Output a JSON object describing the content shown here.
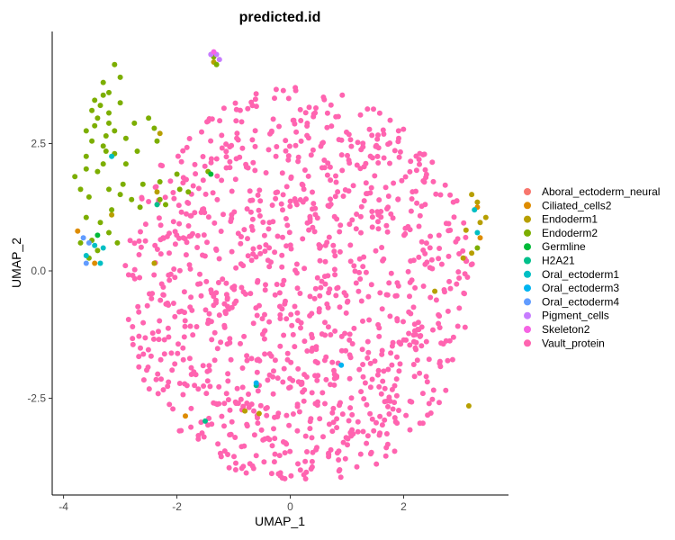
{
  "chart_data": {
    "type": "scatter",
    "title": "predicted.id",
    "xlabel": "UMAP_1",
    "ylabel": "UMAP_2",
    "xlim": [
      -4.2,
      3.85
    ],
    "ylim": [
      -4.4,
      4.7
    ],
    "x_ticks": [
      -4,
      -2,
      0,
      2
    ],
    "y_ticks": [
      -2.5,
      0.0,
      2.5
    ],
    "y_tick_labels": [
      "-2.5",
      "0.0",
      "2.5"
    ],
    "grid": false,
    "legend_position": "right",
    "series": [
      {
        "name": "Aboral_ectoderm_neural",
        "color": "#F8766D",
        "points": []
      },
      {
        "name": "Ciliated_cells2",
        "color": "#DE8C00",
        "points": [
          [
            -3.75,
            0.78
          ],
          [
            -3.45,
            0.15
          ],
          [
            3.3,
            1.25
          ],
          [
            3.35,
            0.65
          ],
          [
            -1.85,
            -2.85
          ]
        ]
      },
      {
        "name": "Endoderm1",
        "color": "#B79F00",
        "points": [
          [
            3.2,
            1.5
          ],
          [
            3.3,
            1.35
          ],
          [
            3.45,
            1.05
          ],
          [
            3.1,
            0.8
          ],
          [
            3.2,
            0.35
          ],
          [
            3.05,
            0.25
          ],
          [
            -3.15,
            1.1
          ],
          [
            -2.35,
            1.55
          ],
          [
            -2.3,
            2.7
          ],
          [
            2.55,
            -0.4
          ],
          [
            -0.55,
            -2.8
          ],
          [
            3.15,
            -2.65
          ],
          [
            -1.35,
            4.1
          ],
          [
            -2.4,
            0.15
          ],
          [
            -0.8,
            -2.75
          ],
          [
            3.35,
            0.95
          ]
        ]
      },
      {
        "name": "Endoderm2",
        "color": "#7CAE00",
        "points": [
          [
            -3.1,
            4.05
          ],
          [
            -3.0,
            3.8
          ],
          [
            -3.3,
            3.7
          ],
          [
            -3.2,
            3.5
          ],
          [
            -3.0,
            3.3
          ],
          [
            -3.35,
            3.25
          ],
          [
            -3.5,
            3.15
          ],
          [
            -3.4,
            3.0
          ],
          [
            -3.2,
            2.9
          ],
          [
            -3.45,
            2.85
          ],
          [
            -3.6,
            2.75
          ],
          [
            -3.25,
            2.65
          ],
          [
            -3.1,
            2.75
          ],
          [
            -3.5,
            2.55
          ],
          [
            -3.3,
            2.45
          ],
          [
            -2.9,
            2.6
          ],
          [
            -2.7,
            2.35
          ],
          [
            -2.5,
            3.0
          ],
          [
            -2.4,
            2.8
          ],
          [
            -2.35,
            2.55
          ],
          [
            -3.6,
            2.25
          ],
          [
            -3.3,
            2.1
          ],
          [
            -3.1,
            2.3
          ],
          [
            -2.9,
            2.1
          ],
          [
            -3.6,
            2.0
          ],
          [
            -3.4,
            1.95
          ],
          [
            -3.8,
            1.85
          ],
          [
            -3.7,
            1.6
          ],
          [
            -3.55,
            1.45
          ],
          [
            -3.2,
            1.6
          ],
          [
            -3.0,
            1.5
          ],
          [
            -2.8,
            1.4
          ],
          [
            -2.95,
            1.7
          ],
          [
            -2.65,
            1.25
          ],
          [
            -2.6,
            1.7
          ],
          [
            -2.3,
            1.75
          ],
          [
            -2.0,
            1.9
          ],
          [
            -1.95,
            1.6
          ],
          [
            -1.8,
            1.55
          ],
          [
            -3.6,
            1.05
          ],
          [
            -3.35,
            0.95
          ],
          [
            -3.2,
            0.75
          ],
          [
            -3.5,
            0.6
          ],
          [
            -3.05,
            0.55
          ],
          [
            -3.15,
            1.2
          ],
          [
            -3.7,
            0.55
          ],
          [
            -3.4,
            0.4
          ],
          [
            -3.55,
            0.25
          ],
          [
            -3.3,
            3.45
          ],
          [
            -3.2,
            3.1
          ],
          [
            -1.45,
            1.95
          ],
          [
            -1.35,
            4.2
          ],
          [
            -1.3,
            4.05
          ],
          [
            -2.3,
            1.4
          ],
          [
            -2.2,
            1.3
          ],
          [
            -2.75,
            2.9
          ],
          [
            -3.45,
            3.35
          ],
          [
            -3.25,
            2.35
          ],
          [
            3.3,
            0.45
          ]
        ]
      },
      {
        "name": "Germline",
        "color": "#00BA38",
        "points": [
          [
            -1.4,
            1.9
          ],
          [
            -3.4,
            0.7
          ]
        ]
      },
      {
        "name": "H2A21",
        "color": "#00C08B",
        "points": [
          [
            -1.5,
            -2.95
          ],
          [
            -0.6,
            -2.25
          ],
          [
            -2.35,
            1.3
          ]
        ]
      },
      {
        "name": "Oral_ectoderm1",
        "color": "#00BFC4",
        "points": [
          [
            -3.3,
            0.45
          ],
          [
            -3.35,
            0.15
          ],
          [
            3.25,
            1.2
          ],
          [
            -3.15,
            2.25
          ],
          [
            -3.6,
            0.3
          ],
          [
            3.3,
            0.75
          ],
          [
            -3.45,
            0.5
          ]
        ]
      },
      {
        "name": "Oral_ectoderm3",
        "color": "#00B4F0",
        "points": [
          [
            0.9,
            -1.85
          ],
          [
            -0.6,
            -2.2
          ]
        ]
      },
      {
        "name": "Oral_ectoderm4",
        "color": "#619CFF",
        "points": [
          [
            -3.65,
            0.65
          ],
          [
            -3.55,
            0.55
          ],
          [
            -3.6,
            0.15
          ]
        ]
      },
      {
        "name": "Pigment_cells",
        "color": "#C77CFF",
        "points": [
          [
            -1.4,
            4.25
          ],
          [
            -1.3,
            4.25
          ],
          [
            -1.25,
            4.15
          ]
        ]
      },
      {
        "name": "Skeleton2",
        "color": "#F564E3",
        "points": [
          [
            -1.35,
            4.3
          ]
        ]
      },
      {
        "name": "Vault_protein",
        "color": "#FF64B0",
        "points": "generated",
        "count": 1150,
        "seed": 7,
        "shape": {
          "center": [
            0.15,
            -0.3
          ],
          "rx": 3.1,
          "ry": 3.9
        }
      }
    ]
  }
}
